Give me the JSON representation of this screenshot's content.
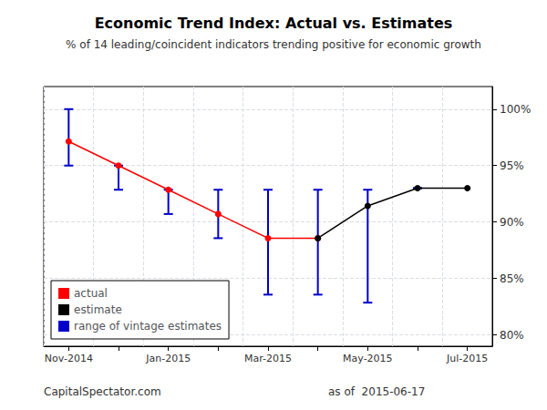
{
  "chart_data": {
    "type": "line",
    "title": "Economic Trend Index: Actual vs. Estimates",
    "subtitle": "% of 14 leading/coincident indicators trending positive for economic growth",
    "annotations": [
      "CapitalSpectator.com",
      "as of  2015-06-17"
    ],
    "categories": [
      "Nov-2014",
      null,
      "Jan-2015",
      null,
      "Mar-2015",
      null,
      "May-2015",
      null,
      "Jul-2015"
    ],
    "series": [
      {
        "name": "actual",
        "type": "line",
        "color": "#ff0000",
        "marker": "circle",
        "line_style": "solid",
        "values": [
          97.14,
          95.0,
          92.86,
          90.71,
          88.57,
          88.57,
          null,
          null,
          null
        ]
      },
      {
        "name": "estimate",
        "type": "line",
        "color": "#000000",
        "marker": "circle",
        "line_style": "solid",
        "values": [
          null,
          null,
          null,
          null,
          null,
          88.57,
          91.43,
          93.0,
          93.0
        ]
      },
      {
        "name": "range of vintage estimates",
        "type": "errorbar",
        "color": "#0000cc",
        "low": [
          95.0,
          92.86,
          90.71,
          88.57,
          83.57,
          83.57,
          82.86,
          93.0,
          null
        ],
        "high": [
          100.0,
          95.0,
          92.86,
          92.86,
          92.86,
          92.86,
          92.86,
          93.0,
          null
        ]
      }
    ],
    "ylim": [
      79.0,
      102.0
    ],
    "yticks": [
      {
        "value": 80,
        "label": "80%"
      },
      {
        "value": 85,
        "label": "85%"
      },
      {
        "value": 90,
        "label": "90%"
      },
      {
        "value": 95,
        "label": "95%"
      },
      {
        "value": 100,
        "label": "100%"
      }
    ],
    "grid": true,
    "legend": "lower left"
  }
}
